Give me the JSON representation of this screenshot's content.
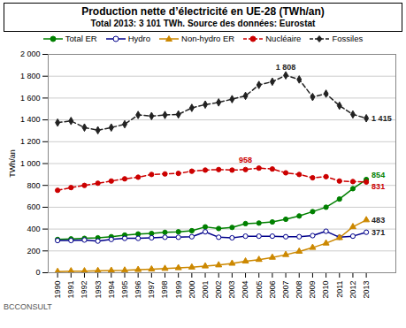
{
  "chart_data": {
    "type": "line",
    "title": "Production nette d’électricité en UE-28 (TWh/an)",
    "subtitle": "Total 2013: 3 101 TWh. Source des données: Eurostat",
    "ylabel": "TWh/an",
    "footer": "BCCONSULT",
    "x": [
      1990,
      1991,
      1992,
      1993,
      1994,
      1995,
      1996,
      1997,
      1998,
      1999,
      2000,
      2001,
      2002,
      2003,
      2004,
      2005,
      2006,
      2007,
      2008,
      2009,
      2010,
      2011,
      2012,
      2013
    ],
    "series": [
      {
        "name": "Total ER",
        "color": "#008000",
        "marker": "circle",
        "line_style": "solid",
        "values": [
          305,
          310,
          315,
          320,
          330,
          345,
          355,
          360,
          370,
          375,
          385,
          420,
          405,
          415,
          450,
          455,
          465,
          490,
          520,
          560,
          600,
          675,
          770,
          854
        ]
      },
      {
        "name": "Hydro",
        "color": "#00008B",
        "marker": "circle-open",
        "line_style": "solid",
        "values": [
          295,
          295,
          300,
          290,
          305,
          315,
          315,
          320,
          325,
          325,
          330,
          375,
          325,
          320,
          335,
          335,
          335,
          330,
          330,
          340,
          380,
          325,
          335,
          371
        ]
      },
      {
        "name": "Non-hydro ER",
        "color": "#CC8800",
        "marker": "triangle",
        "line_style": "solid",
        "values": [
          10,
          15,
          15,
          18,
          20,
          22,
          28,
          32,
          38,
          44,
          50,
          60,
          70,
          85,
          105,
          120,
          140,
          165,
          195,
          230,
          270,
          320,
          420,
          483
        ]
      },
      {
        "name": "Nucléaire",
        "color": "#CC0000",
        "marker": "circle",
        "line_style": "dashed",
        "values": [
          755,
          780,
          800,
          820,
          840,
          860,
          875,
          900,
          905,
          910,
          930,
          940,
          945,
          940,
          945,
          958,
          950,
          915,
          900,
          870,
          880,
          840,
          835,
          831
        ]
      },
      {
        "name": "Fossiles",
        "color": "#222222",
        "marker": "diamond",
        "line_style": "dashed",
        "values": [
          1375,
          1390,
          1330,
          1305,
          1330,
          1360,
          1445,
          1435,
          1445,
          1450,
          1510,
          1540,
          1560,
          1590,
          1620,
          1720,
          1750,
          1808,
          1770,
          1610,
          1640,
          1530,
          1450,
          1415
        ]
      }
    ],
    "annotations": [
      {
        "text": "1 808",
        "x": 2007,
        "y": 1808,
        "color": "#222222"
      },
      {
        "text": "958",
        "x": 2004,
        "y": 958,
        "color": "#CC0000"
      },
      {
        "text": "1 415",
        "x": 2013,
        "y": 1415,
        "color": "#222222"
      },
      {
        "text": "854",
        "x": 2013,
        "y": 854,
        "color": "#008000"
      },
      {
        "text": "831",
        "x": 2013,
        "y": 831,
        "color": "#CC0000"
      },
      {
        "text": "483",
        "x": 2013,
        "y": 483,
        "color": "#222222"
      },
      {
        "text": "371",
        "x": 2013,
        "y": 371,
        "color": "#222222"
      }
    ],
    "xlim": [
      1989.3,
      2015.2
    ],
    "xticks": [
      1990,
      1991,
      1992,
      1993,
      1994,
      1995,
      1996,
      1997,
      1998,
      1999,
      2000,
      2001,
      2002,
      2003,
      2004,
      2005,
      2006,
      2007,
      2008,
      2009,
      2010,
      2011,
      2012,
      2013
    ],
    "ylim": [
      0,
      2000
    ],
    "yticks": [
      0,
      200,
      400,
      600,
      800,
      {
        "value": 1000,
        "label": "1 000"
      },
      {
        "value": 1200,
        "label": "1 200"
      },
      {
        "value": 1400,
        "label": "1 400"
      },
      {
        "value": 1600,
        "label": "1 600"
      },
      {
        "value": 1800,
        "label": "1 800"
      },
      {
        "value": 2000,
        "label": "2 000"
      }
    ],
    "grid": true,
    "legend": "top"
  }
}
